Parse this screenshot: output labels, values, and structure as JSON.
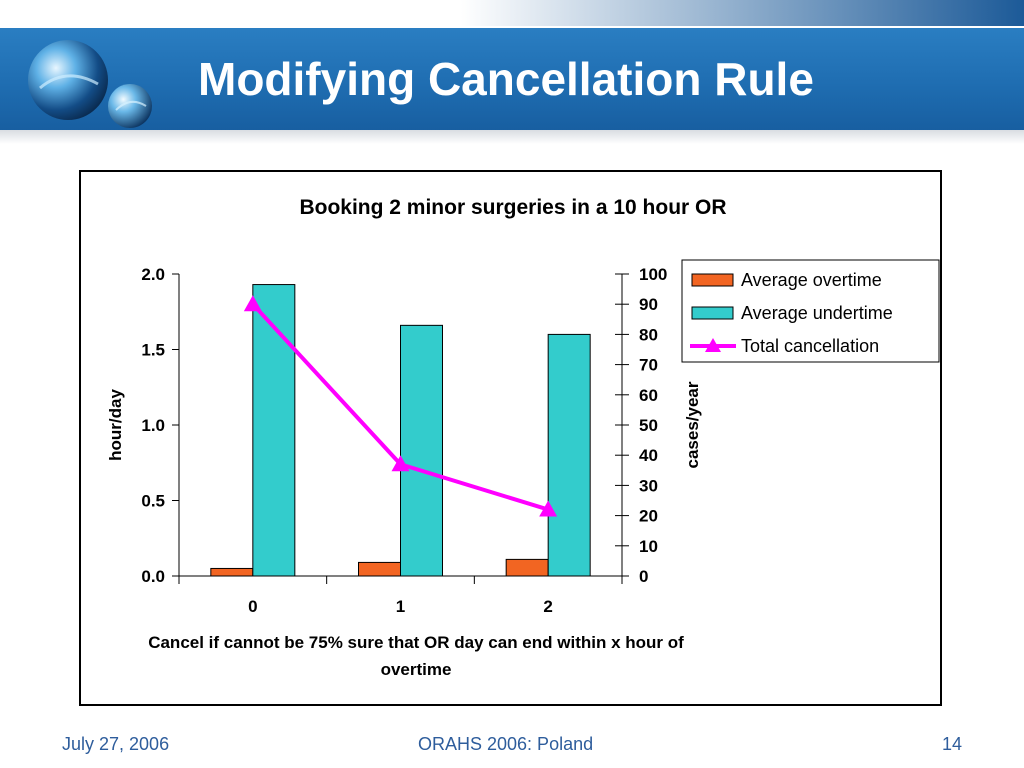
{
  "slide": {
    "title": "Modifying Cancellation Rule",
    "footer": {
      "date": "July 27, 2006",
      "conference": "ORAHS 2006: Poland",
      "page_number": "14"
    }
  },
  "colors": {
    "overtime": "#f26522",
    "undertime": "#33cccc",
    "cancellation": "#ff00ff",
    "footer_text": "#2e5d9c",
    "header_band": "#1f6db1"
  },
  "chart_data": {
    "type": "bar",
    "title": "Booking 2 minor surgeries in a 10 hour OR",
    "categories": [
      "0",
      "1",
      "2"
    ],
    "xlabel": "Cancel if cannot be 75% sure that OR day can end within x hour of overtime",
    "ylabel": "hour/day",
    "y2label": "cases/year",
    "ylim": [
      0,
      2.0
    ],
    "y2lim": [
      0,
      100
    ],
    "yticks": [
      "0.0",
      "0.5",
      "1.0",
      "1.5",
      "2.0"
    ],
    "y2ticks": [
      "0",
      "10",
      "20",
      "30",
      "40",
      "50",
      "60",
      "70",
      "80",
      "90",
      "100"
    ],
    "series": [
      {
        "name": "Average overtime",
        "kind": "bar",
        "axis": "left",
        "color": "#f26522",
        "values": [
          0.05,
          0.09,
          0.11
        ]
      },
      {
        "name": "Average undertime",
        "kind": "bar",
        "axis": "left",
        "color": "#33cccc",
        "values": [
          1.93,
          1.66,
          1.6
        ]
      },
      {
        "name": "Total cancellation",
        "kind": "line",
        "axis": "right",
        "marker": "triangle",
        "color": "#ff00ff",
        "values": [
          90,
          37,
          22
        ]
      }
    ],
    "legend_position": "top-right",
    "grid": false
  }
}
